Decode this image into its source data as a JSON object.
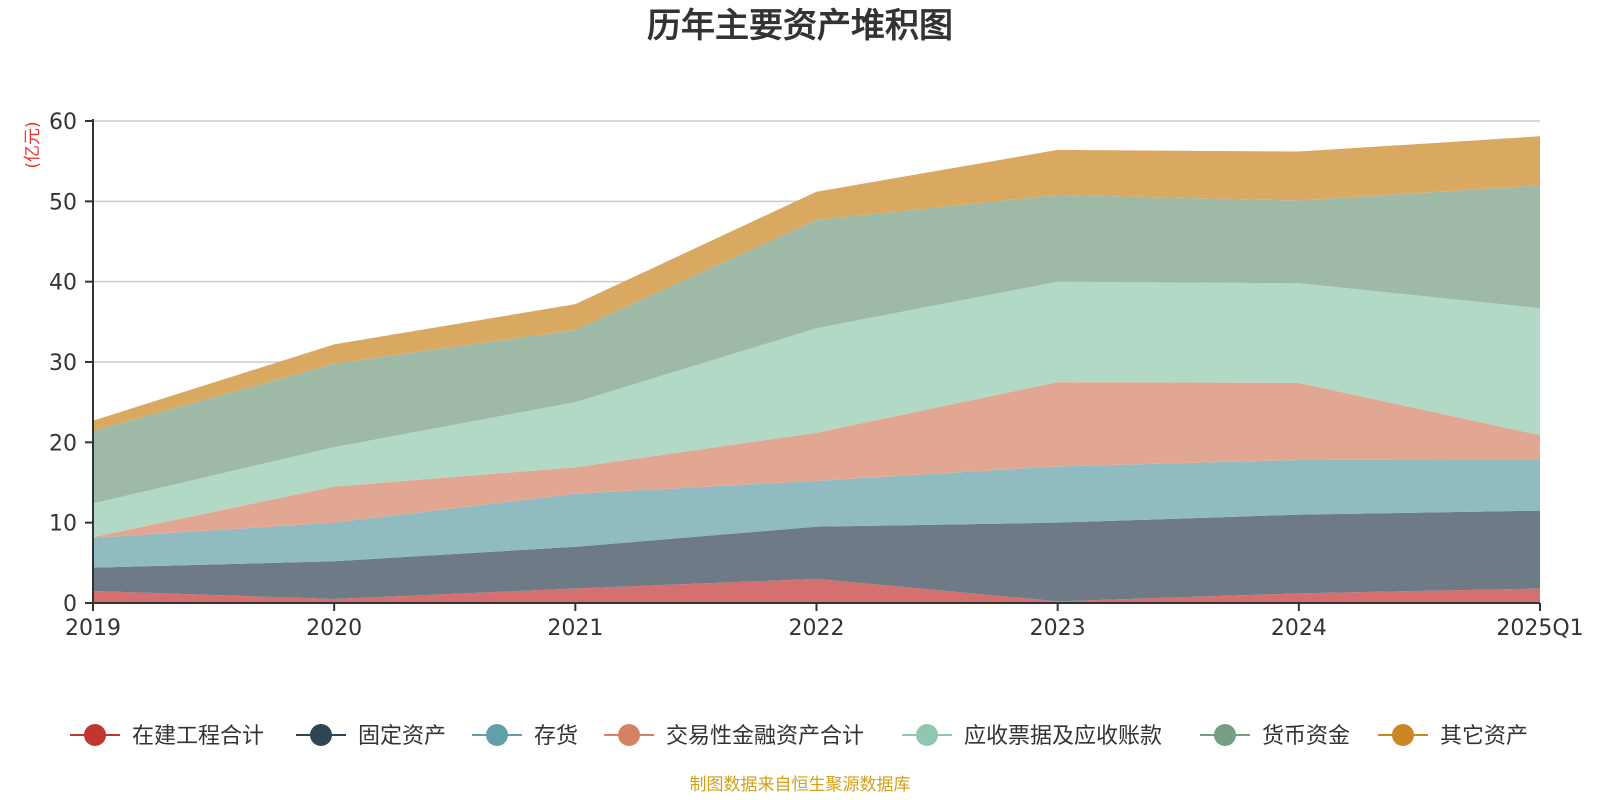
{
  "chart_data": {
    "type": "area",
    "stacked": true,
    "title": "历年主要资产堆积图",
    "unit_label": "(亿元)",
    "source_note": "制图数据来自恒生聚源数据库",
    "categories": [
      "2019",
      "2020",
      "2021",
      "2022",
      "2023",
      "2024",
      "2025Q1"
    ],
    "ylim": [
      0,
      60
    ],
    "yticks": [
      0,
      10,
      20,
      30,
      40,
      50,
      60
    ],
    "grid": true,
    "legend_position": "bottom",
    "series": [
      {
        "name": "在建工程合计",
        "color": "#c23531",
        "fill": "#d4706f",
        "values": [
          1.5,
          0.5,
          1.8,
          3.0,
          0.2,
          1.2,
          1.8
        ]
      },
      {
        "name": "固定资产",
        "color": "#2f4554",
        "fill": "#6e7b86",
        "values": [
          2.9,
          4.7,
          5.2,
          6.5,
          9.8,
          9.8,
          9.7
        ]
      },
      {
        "name": "存货",
        "color": "#61a0a8",
        "fill": "#90bbc1",
        "values": [
          3.7,
          4.8,
          6.6,
          5.7,
          7.0,
          6.8,
          6.4
        ]
      },
      {
        "name": "交易性金融资产合计",
        "color": "#d48265",
        "fill": "#e2a793",
        "values": [
          0.1,
          4.5,
          3.3,
          6.0,
          10.5,
          9.6,
          3.0
        ]
      },
      {
        "name": "应收票据及应收账款",
        "color": "#91c7ae",
        "fill": "#b2d9c6",
        "values": [
          4.2,
          4.9,
          8.1,
          13.0,
          12.5,
          12.4,
          15.8
        ]
      },
      {
        "name": "货币资金",
        "color": "#749f83",
        "fill": "#9ebaa6",
        "values": [
          9.0,
          10.4,
          9.0,
          13.5,
          10.8,
          10.3,
          15.3
        ]
      },
      {
        "name": "其它资产",
        "color": "#ca8622",
        "fill": "#d9a962",
        "values": [
          1.3,
          2.4,
          3.2,
          3.5,
          5.6,
          6.1,
          6.1
        ]
      }
    ]
  }
}
